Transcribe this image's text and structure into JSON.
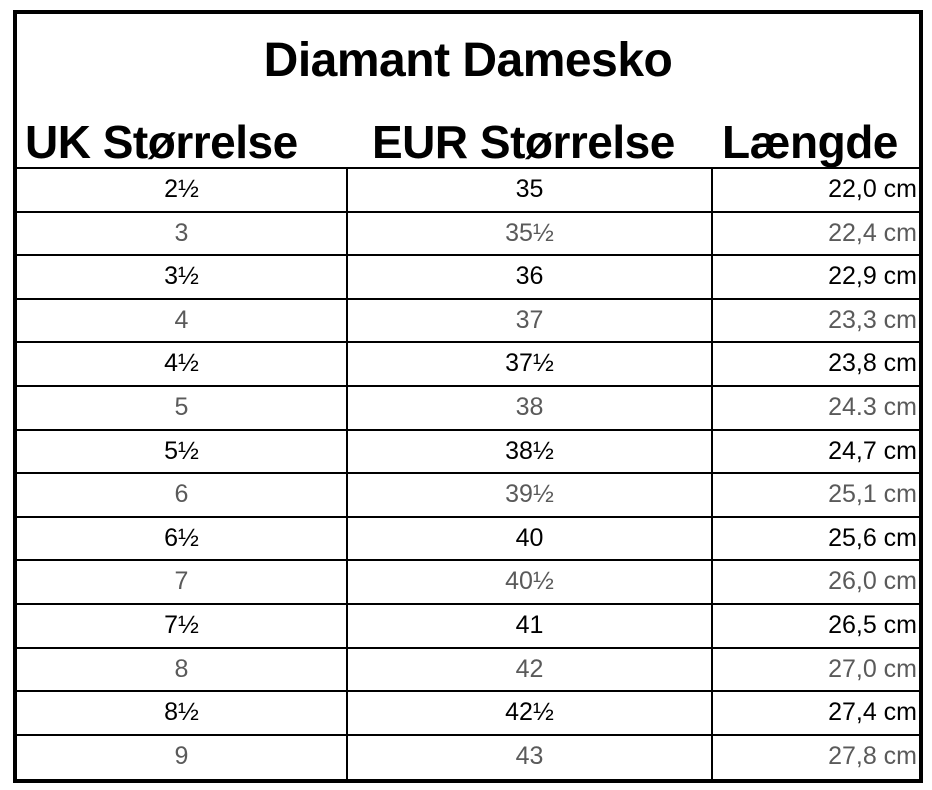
{
  "title": "Diamant Damesko",
  "headers": {
    "uk": "UK Størrelse",
    "eur": "EUR Størrelse",
    "length": "Længde"
  },
  "rows": [
    {
      "uk": "2½",
      "eur": "35",
      "length": "22,0 cm"
    },
    {
      "uk": "3",
      "eur": "35½",
      "length": "22,4 cm"
    },
    {
      "uk": "3½",
      "eur": "36",
      "length": "22,9 cm"
    },
    {
      "uk": "4",
      "eur": "37",
      "length": "23,3 cm"
    },
    {
      "uk": "4½",
      "eur": "37½",
      "length": "23,8 cm"
    },
    {
      "uk": "5",
      "eur": "38",
      "length": "24.3 cm"
    },
    {
      "uk": "5½",
      "eur": "38½",
      "length": "24,7 cm"
    },
    {
      "uk": "6",
      "eur": "39½",
      "length": "25,1 cm"
    },
    {
      "uk": "6½",
      "eur": "40",
      "length": "25,6 cm"
    },
    {
      "uk": "7",
      "eur": "40½",
      "length": "26,0 cm"
    },
    {
      "uk": "7½",
      "eur": "41",
      "length": "26,5 cm"
    },
    {
      "uk": "8",
      "eur": "42",
      "length": "27,0 cm"
    },
    {
      "uk": "8½",
      "eur": "42½",
      "length": "27,4 cm"
    },
    {
      "uk": "9",
      "eur": "43",
      "length": "27,8 cm"
    }
  ],
  "colors": {
    "border": "#000000",
    "text_dark": "#000000",
    "text_light": "#5a5a5a",
    "background": "#ffffff"
  }
}
